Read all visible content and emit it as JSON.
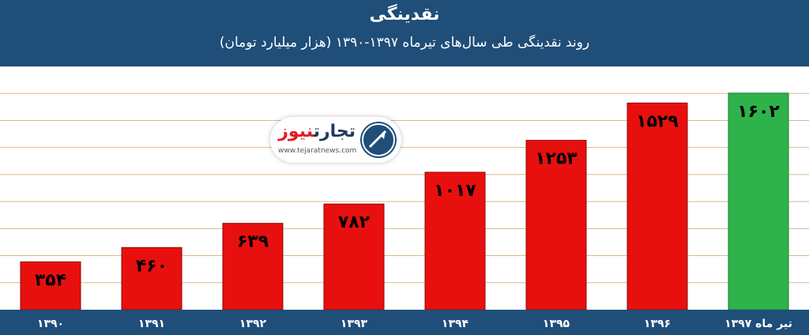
{
  "header": {
    "title": "نقدینگی",
    "subtitle": "روند نقدینگی طی سال‌های تیرماه ۱۳۹۷-۱۳۹۰ (هزار میلیارد تومان)"
  },
  "logo": {
    "name_main": "تجارت",
    "name_accent": "نیوز",
    "url": "www.tejaratnews.com"
  },
  "colors": {
    "header": "#1f4e79",
    "bar_default": "#e8100e",
    "bar_highlight": "#2db34a",
    "grid": "#d9b98a"
  },
  "chart_data": {
    "type": "bar",
    "title": "نقدینگی",
    "subtitle": "روند نقدینگی طی سال‌های تیرماه ۱۳۹۷-۱۳۹۰ (هزار میلیارد تومان)",
    "categories": [
      "۱۳۹۰",
      "۱۳۹۱",
      "۱۳۹۲",
      "۱۳۹۳",
      "۱۳۹۴",
      "۱۳۹۵",
      "۱۳۹۶",
      "تیر ماه ۱۳۹۷"
    ],
    "values": [
      354,
      460,
      639,
      782,
      1017,
      1253,
      1529,
      1602
    ],
    "value_labels": [
      "۳۵۴",
      "۴۶۰",
      "۶۳۹",
      "۷۸۲",
      "۱۰۱۷",
      "۱۲۵۳",
      "۱۵۲۹",
      "۱۶۰۲"
    ],
    "highlight_index": 7,
    "ylim": [
      0,
      1800
    ],
    "grid": true,
    "xlabel": "",
    "ylabel": ""
  }
}
